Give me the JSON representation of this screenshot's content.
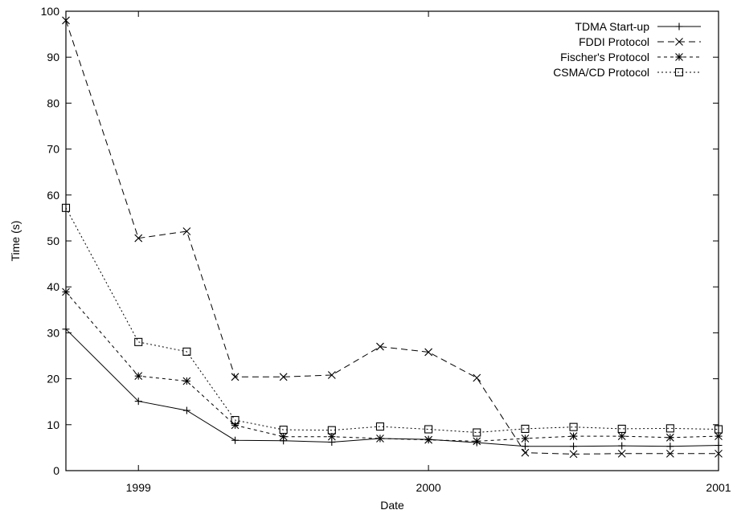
{
  "chart_data": {
    "type": "line",
    "title": "",
    "xlabel": "Date",
    "ylabel": "Time (s)",
    "x_ticks": [
      "1999",
      "2000",
      "2001"
    ],
    "y_ticks": [
      "0",
      "10",
      "20",
      "30",
      "40",
      "50",
      "60",
      "70",
      "80",
      "90",
      "100"
    ],
    "xlim": [
      "1998-10",
      "2001-01"
    ],
    "ylim": [
      0,
      100
    ],
    "grid": false,
    "legend_position": "top-right",
    "x": [
      "1998-10",
      "1999-01",
      "1999-03",
      "1999-05",
      "1999-07",
      "1999-09",
      "1999-11",
      "2000-01",
      "2000-03",
      "2000-05",
      "2000-07",
      "2000-09",
      "2000-11",
      "2001-01"
    ],
    "series": [
      {
        "name": "TDMA Start-up",
        "marker": "plus",
        "dash": "solid",
        "values": [
          30.8,
          15.1,
          13.1,
          6.6,
          6.5,
          6.2,
          7.0,
          6.8,
          6.1,
          5.3,
          5.3,
          5.4,
          5.3,
          5.5
        ]
      },
      {
        "name": "FDDI Protocol",
        "marker": "cross",
        "dash": "dashed",
        "values": [
          98.0,
          50.6,
          52.1,
          20.4,
          20.4,
          20.8,
          27.0,
          25.8,
          20.2,
          3.9,
          3.6,
          3.7,
          3.7,
          3.7
        ]
      },
      {
        "name": "Fischer's Protocol",
        "marker": "star",
        "dash": "short-dashed",
        "values": [
          38.9,
          20.6,
          19.5,
          9.9,
          7.4,
          7.4,
          7.0,
          6.7,
          6.4,
          7.0,
          7.5,
          7.5,
          7.2,
          7.5
        ]
      },
      {
        "name": "CSMA/CD Protocol",
        "marker": "square",
        "dash": "dotted",
        "values": [
          57.2,
          28.0,
          25.9,
          11.0,
          8.9,
          8.8,
          9.6,
          9.0,
          8.3,
          9.1,
          9.5,
          9.1,
          9.2,
          9.0
        ]
      }
    ]
  }
}
